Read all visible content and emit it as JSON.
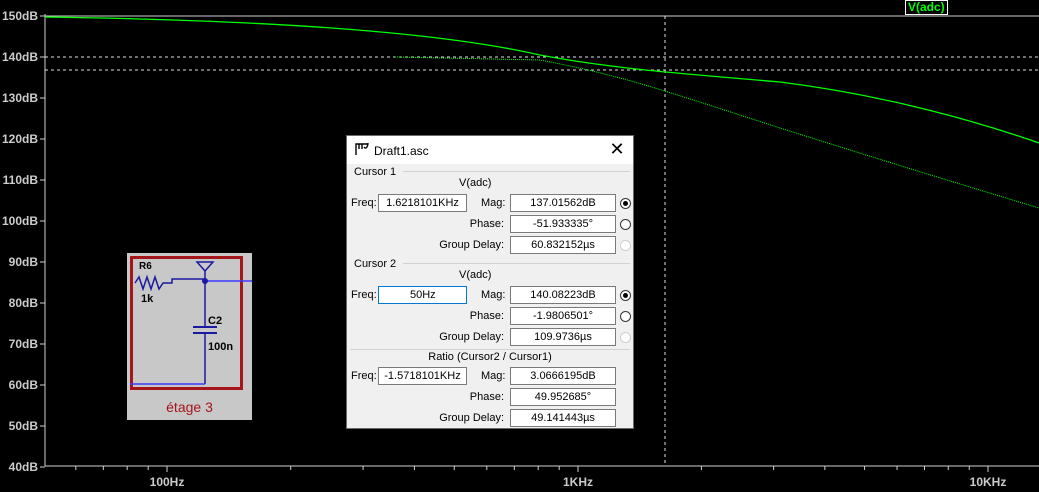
{
  "plot": {
    "trace_name": "V(adc)",
    "trace_color": "#00ff00",
    "y_ticks": [
      "150dB",
      "140dB",
      "130dB",
      "120dB",
      "110dB",
      "100dB",
      "90dB",
      "80dB",
      "70dB",
      "60dB",
      "50dB",
      "40dB"
    ],
    "x_ticks": [
      "100Hz",
      "1KHz",
      "10KHz"
    ]
  },
  "schematic": {
    "resistor_name": "R6",
    "resistor_value": "1k",
    "capacitor_name": "C2",
    "capacitor_value": "100n",
    "caption": "étage 3",
    "frame_color": "#a4161a"
  },
  "dialog": {
    "title": "Draft1.asc",
    "cursor1": {
      "group_label": "Cursor 1",
      "trace": "V(adc)",
      "freq_label": "Freq:",
      "freq_value": "1.6218101KHz",
      "mag_label": "Mag:",
      "mag_value": "137.01562dB",
      "phase_label": "Phase:",
      "phase_value": "-51.933335°",
      "gd_label": "Group Delay:",
      "gd_value": "60.832152µs"
    },
    "cursor2": {
      "group_label": "Cursor 2",
      "trace": "V(adc)",
      "freq_label": "Freq:",
      "freq_value": "50Hz",
      "mag_label": "Mag:",
      "mag_value": "140.08223dB",
      "phase_label": "Phase:",
      "phase_value": "-1.9806501°",
      "gd_label": "Group Delay:",
      "gd_value": "109.9736µs"
    },
    "ratio": {
      "group_label": "Ratio (Cursor2 / Cursor1)",
      "freq_label": "Freq:",
      "freq_value": "-1.5718101KHz",
      "mag_label": "Mag:",
      "mag_value": "3.0666195dB",
      "phase_label": "Phase:",
      "phase_value": "49.952685°",
      "gd_label": "Group Delay:",
      "gd_value": "49.141443µs"
    }
  }
}
